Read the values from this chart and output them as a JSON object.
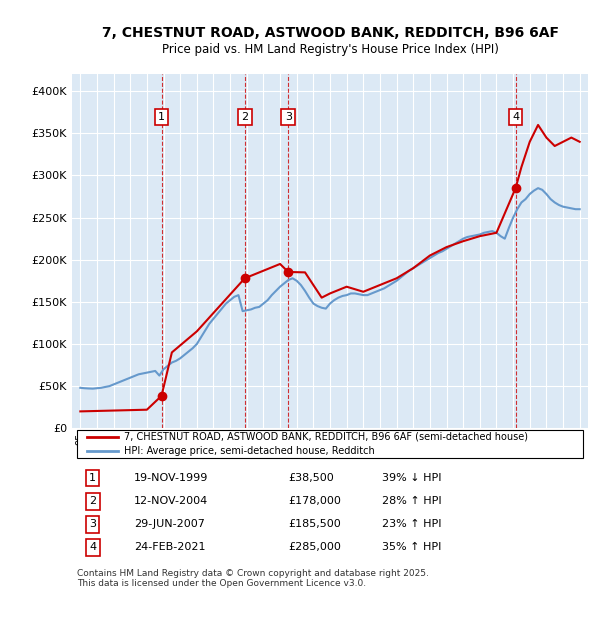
{
  "title": "7, CHESTNUT ROAD, ASTWOOD BANK, REDDITCH, B96 6AF",
  "subtitle": "Price paid vs. HM Land Registry's House Price Index (HPI)",
  "ylabel": "",
  "background_color": "#dce9f5",
  "plot_bg_color": "#dce9f5",
  "grid_color": "#ffffff",
  "red_line_color": "#cc0000",
  "blue_line_color": "#6699cc",
  "legend_label_red": "7, CHESTNUT ROAD, ASTWOOD BANK, REDDITCH, B96 6AF (semi-detached house)",
  "legend_label_blue": "HPI: Average price, semi-detached house, Redditch",
  "transactions": [
    {
      "num": 1,
      "date": "19-NOV-1999",
      "price": 38500,
      "hpi_diff": "39% ↓ HPI",
      "year": 1999.88
    },
    {
      "num": 2,
      "date": "12-NOV-2004",
      "price": 178000,
      "hpi_diff": "28% ↑ HPI",
      "year": 2004.88
    },
    {
      "num": 3,
      "date": "29-JUN-2007",
      "price": 185500,
      "hpi_diff": "23% ↑ HPI",
      "year": 2007.49
    },
    {
      "num": 4,
      "date": "24-FEB-2021",
      "price": 285000,
      "hpi_diff": "35% ↑ HPI",
      "year": 2021.15
    }
  ],
  "footnote": "Contains HM Land Registry data © Crown copyright and database right 2025.\nThis data is licensed under the Open Government Licence v3.0.",
  "hpi_data": {
    "years": [
      1995.0,
      1995.25,
      1995.5,
      1995.75,
      1996.0,
      1996.25,
      1996.5,
      1996.75,
      1997.0,
      1997.25,
      1997.5,
      1997.75,
      1998.0,
      1998.25,
      1998.5,
      1998.75,
      1999.0,
      1999.25,
      1999.5,
      1999.75,
      2000.0,
      2000.25,
      2000.5,
      2000.75,
      2001.0,
      2001.25,
      2001.5,
      2001.75,
      2002.0,
      2002.25,
      2002.5,
      2002.75,
      2003.0,
      2003.25,
      2003.5,
      2003.75,
      2004.0,
      2004.25,
      2004.5,
      2004.75,
      2005.0,
      2005.25,
      2005.5,
      2005.75,
      2006.0,
      2006.25,
      2006.5,
      2006.75,
      2007.0,
      2007.25,
      2007.5,
      2007.75,
      2008.0,
      2008.25,
      2008.5,
      2008.75,
      2009.0,
      2009.25,
      2009.5,
      2009.75,
      2010.0,
      2010.25,
      2010.5,
      2010.75,
      2011.0,
      2011.25,
      2011.5,
      2011.75,
      2012.0,
      2012.25,
      2012.5,
      2012.75,
      2013.0,
      2013.25,
      2013.5,
      2013.75,
      2014.0,
      2014.25,
      2014.5,
      2014.75,
      2015.0,
      2015.25,
      2015.5,
      2015.75,
      2016.0,
      2016.25,
      2016.5,
      2016.75,
      2017.0,
      2017.25,
      2017.5,
      2017.75,
      2018.0,
      2018.25,
      2018.5,
      2018.75,
      2019.0,
      2019.25,
      2019.5,
      2019.75,
      2020.0,
      2020.25,
      2020.5,
      2020.75,
      2021.0,
      2021.25,
      2021.5,
      2021.75,
      2022.0,
      2022.25,
      2022.5,
      2022.75,
      2023.0,
      2023.25,
      2023.5,
      2023.75,
      2024.0,
      2024.25,
      2024.5,
      2024.75,
      2025.0
    ],
    "values": [
      48000,
      47500,
      47200,
      47000,
      47500,
      48000,
      49000,
      50000,
      52000,
      54000,
      56000,
      58000,
      60000,
      62000,
      64000,
      65000,
      66000,
      67000,
      68000,
      62500,
      70000,
      74000,
      78000,
      80000,
      83000,
      87000,
      91000,
      95000,
      100000,
      108000,
      116000,
      124000,
      130000,
      136000,
      142000,
      148000,
      152000,
      156000,
      158000,
      139000,
      140000,
      141000,
      143000,
      144000,
      148000,
      152000,
      158000,
      163000,
      168000,
      172000,
      176000,
      178000,
      175000,
      170000,
      163000,
      155000,
      148000,
      145000,
      143000,
      142000,
      148000,
      152000,
      155000,
      157000,
      158000,
      160000,
      160000,
      159000,
      158000,
      158000,
      160000,
      162000,
      164000,
      166000,
      169000,
      172000,
      175000,
      179000,
      183000,
      187000,
      190000,
      193000,
      196000,
      199000,
      202000,
      205000,
      208000,
      210000,
      213000,
      216000,
      219000,
      222000,
      225000,
      227000,
      228000,
      229000,
      230000,
      232000,
      233000,
      234000,
      232000,
      228000,
      225000,
      238000,
      250000,
      260000,
      268000,
      272000,
      278000,
      282000,
      285000,
      283000,
      278000,
      272000,
      268000,
      265000,
      263000,
      262000,
      261000,
      260000,
      260000
    ]
  },
  "property_data": {
    "years": [
      1995.0,
      1999.0,
      1999.88,
      2000.5,
      2002.0,
      2004.88,
      2007.0,
      2007.49,
      2008.5,
      2009.5,
      2010.0,
      2011.0,
      2012.0,
      2013.0,
      2014.0,
      2015.0,
      2016.0,
      2017.0,
      2018.0,
      2019.0,
      2020.0,
      2021.15,
      2021.5,
      2022.0,
      2022.5,
      2023.0,
      2023.5,
      2024.0,
      2024.5,
      2025.0
    ],
    "values": [
      20000,
      22000,
      38500,
      90000,
      115000,
      178000,
      195000,
      185500,
      185000,
      155000,
      160000,
      168000,
      162000,
      170000,
      178000,
      190000,
      205000,
      215000,
      222000,
      228000,
      232000,
      285000,
      310000,
      340000,
      360000,
      345000,
      335000,
      340000,
      345000,
      340000
    ]
  },
  "ylim": [
    0,
    420000
  ],
  "xlim": [
    1994.5,
    2025.5
  ],
  "yticks": [
    0,
    50000,
    100000,
    150000,
    200000,
    250000,
    300000,
    350000,
    400000
  ],
  "ytick_labels": [
    "£0",
    "£50K",
    "£100K",
    "£150K",
    "£200K",
    "£250K",
    "£300K",
    "£350K",
    "£400K"
  ],
  "xticks": [
    1995,
    1996,
    1997,
    1998,
    1999,
    2000,
    2001,
    2002,
    2003,
    2004,
    2005,
    2006,
    2007,
    2008,
    2009,
    2010,
    2011,
    2012,
    2013,
    2014,
    2015,
    2016,
    2017,
    2018,
    2019,
    2020,
    2021,
    2022,
    2023,
    2024,
    2025
  ]
}
